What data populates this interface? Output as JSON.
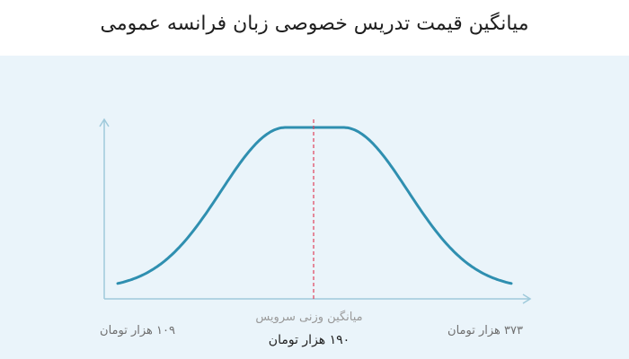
{
  "title": "میانگین قیمت تدریس خصوصی زبان فرانسه عمومی",
  "chart_data": {
    "type": "area",
    "title": "میانگین قیمت تدریس خصوصی زبان فرانسه عمومی",
    "distribution": "normal",
    "min_label": "۱۰۹ هزار تومان",
    "max_label": "۳۷۳ هزار تومان",
    "mean_caption": "میانگین وزنی سرویس",
    "mean_label": "۱۹۰ هزار تومان",
    "min_value": 109,
    "max_value": 373,
    "mean_value": 190,
    "grid": false,
    "colors": {
      "curve": "#2f8fb0",
      "mean_line": "#e0405a",
      "axis": "#9fcadb",
      "fill": "#eaf4fa"
    }
  }
}
